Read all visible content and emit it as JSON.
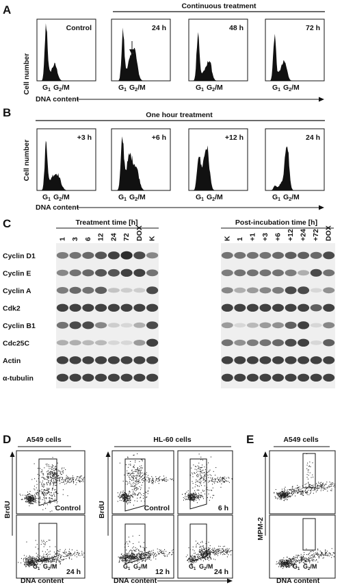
{
  "panels": {
    "A": {
      "letter": "A",
      "banner": "Continuous treatment",
      "ylabel": "Cell number",
      "xlabel": "DNA content",
      "tick_g1": "G",
      "tick_g1_sub": "1",
      "tick_g2": "G",
      "tick_g2_sub": "2",
      "tick_m": "/M",
      "histograms": [
        {
          "label": "Control"
        },
        {
          "label": "24 h"
        },
        {
          "label": "48 h"
        },
        {
          "label": "72 h"
        }
      ]
    },
    "B": {
      "letter": "B",
      "banner": "One hour treatment",
      "ylabel": "Cell number",
      "xlabel": "DNA content",
      "histograms": [
        {
          "label": "+3 h"
        },
        {
          "label": "+6 h"
        },
        {
          "label": "+12 h"
        },
        {
          "label": "24 h"
        }
      ]
    },
    "C": {
      "letter": "C",
      "left_header": "Treatment time [h]",
      "right_header": "Post-incubation time [h]",
      "left_lanes": [
        "1",
        "3",
        "6",
        "12",
        "24",
        "72",
        "DOX",
        "K"
      ],
      "right_lanes": [
        "K",
        "1",
        "+1",
        "+3",
        "+6",
        "+12",
        "+24",
        "+72",
        "DOX"
      ],
      "proteins": [
        "Cyclin D1",
        "Cyclin E",
        "Cyclin A",
        "Cdk2",
        "Cyclin B1",
        "Cdc25C",
        "Actin",
        "α-tubulin"
      ],
      "left_intensity": [
        [
          0.55,
          0.6,
          0.65,
          0.75,
          0.85,
          0.95,
          0.8,
          0.5
        ],
        [
          0.5,
          0.6,
          0.65,
          0.75,
          0.75,
          0.85,
          0.85,
          0.6
        ],
        [
          0.55,
          0.65,
          0.6,
          0.7,
          0.2,
          0.15,
          0.15,
          0.8
        ],
        [
          0.85,
          0.85,
          0.85,
          0.85,
          0.85,
          0.85,
          0.85,
          0.85
        ],
        [
          0.6,
          0.8,
          0.8,
          0.5,
          0.15,
          0.1,
          0.3,
          0.8
        ],
        [
          0.3,
          0.3,
          0.25,
          0.25,
          0.1,
          0.1,
          0.4,
          0.85
        ],
        [
          0.85,
          0.85,
          0.85,
          0.85,
          0.85,
          0.85,
          0.85,
          0.85
        ],
        [
          0.85,
          0.85,
          0.85,
          0.85,
          0.85,
          0.85,
          0.85,
          0.85
        ]
      ],
      "right_intensity": [
        [
          0.6,
          0.6,
          0.6,
          0.6,
          0.65,
          0.7,
          0.7,
          0.65,
          0.8
        ],
        [
          0.55,
          0.6,
          0.6,
          0.6,
          0.6,
          0.55,
          0.3,
          0.8,
          0.6
        ],
        [
          0.5,
          0.3,
          0.4,
          0.5,
          0.55,
          0.8,
          0.8,
          0.1,
          0.45
        ],
        [
          0.85,
          0.85,
          0.85,
          0.85,
          0.85,
          0.85,
          0.85,
          0.7,
          0.85
        ],
        [
          0.4,
          0.1,
          0.25,
          0.4,
          0.45,
          0.7,
          0.85,
          0.1,
          0.5
        ],
        [
          0.6,
          0.45,
          0.55,
          0.6,
          0.65,
          0.8,
          0.85,
          0.1,
          0.7
        ],
        [
          0.85,
          0.85,
          0.85,
          0.85,
          0.85,
          0.85,
          0.85,
          0.85,
          0.85
        ],
        [
          0.85,
          0.85,
          0.85,
          0.85,
          0.85,
          0.85,
          0.85,
          0.85,
          0.85
        ]
      ]
    },
    "D": {
      "letter": "D",
      "left_title": "A549 cells",
      "right_title": "HL-60 cells",
      "ylabel": "BrdU",
      "xlabel": "DNA content",
      "plots": [
        {
          "label": "Control"
        },
        {
          "label": "24 h"
        },
        {
          "label": "Control"
        },
        {
          "label": "6 h"
        },
        {
          "label": "12 h"
        },
        {
          "label": "24 h"
        }
      ]
    },
    "E": {
      "letter": "E",
      "title": "A549 cells",
      "ylabel": "MPM-2",
      "xlabel": "DNA content"
    }
  }
}
